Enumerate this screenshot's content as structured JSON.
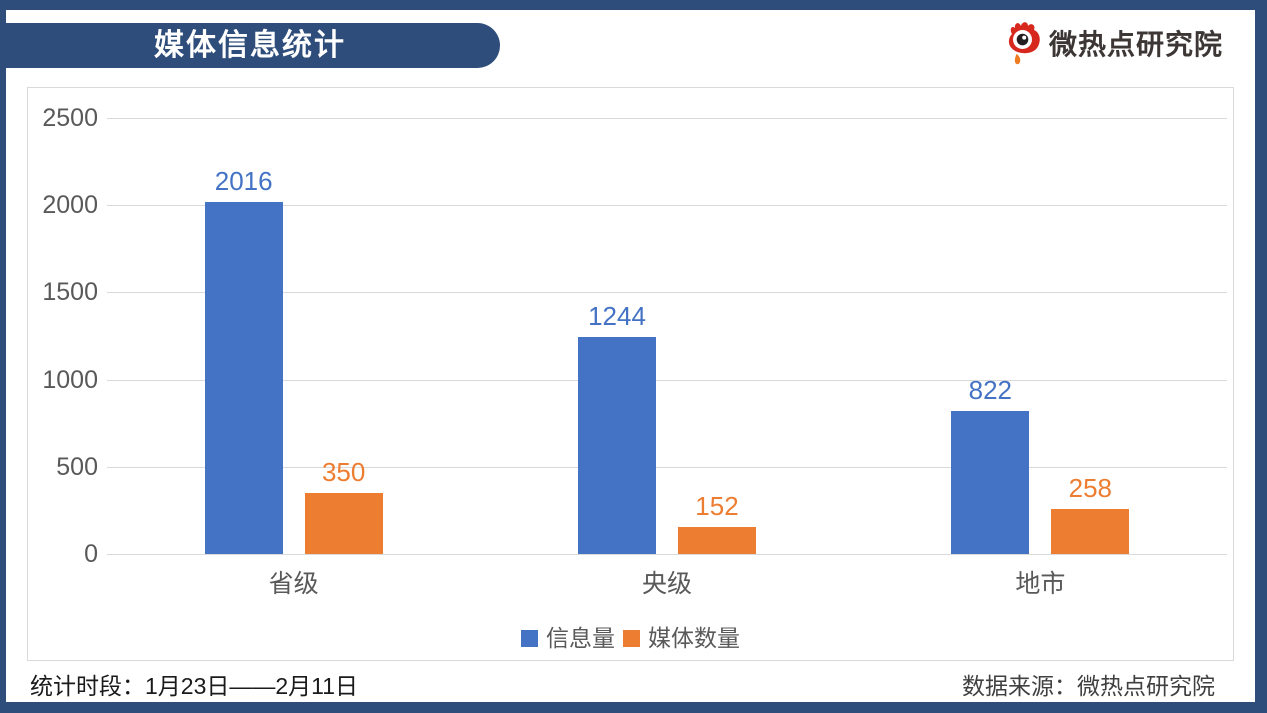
{
  "header": {
    "title": "媒体信息统计",
    "brand": "微热点研究院"
  },
  "footer": {
    "period_label": "统计时段：1月23日——2月11日",
    "source_label": "数据来源：微热点研究院"
  },
  "colors": {
    "frame": "#2e4d7b",
    "series_blue": "#4472c4",
    "series_orange": "#ed7d31",
    "axis_text": "#595959",
    "gridline": "#d9d9d9",
    "logo_red": "#d7281e",
    "logo_orange": "#ef7b21"
  },
  "chart_data": {
    "type": "bar",
    "title": "媒体信息统计",
    "categories": [
      "省级",
      "央级",
      "地市"
    ],
    "series": [
      {
        "name": "信息量",
        "color": "#4472c4",
        "values": [
          2016,
          1244,
          822
        ]
      },
      {
        "name": "媒体数量",
        "color": "#ed7d31",
        "values": [
          350,
          152,
          258
        ]
      }
    ],
    "xlabel": "",
    "ylabel": "",
    "ylim": [
      0,
      2500
    ],
    "yticks": [
      0,
      500,
      1000,
      1500,
      2000,
      2500
    ],
    "grid": true,
    "data_labels": true,
    "legend_position": "bottom"
  }
}
